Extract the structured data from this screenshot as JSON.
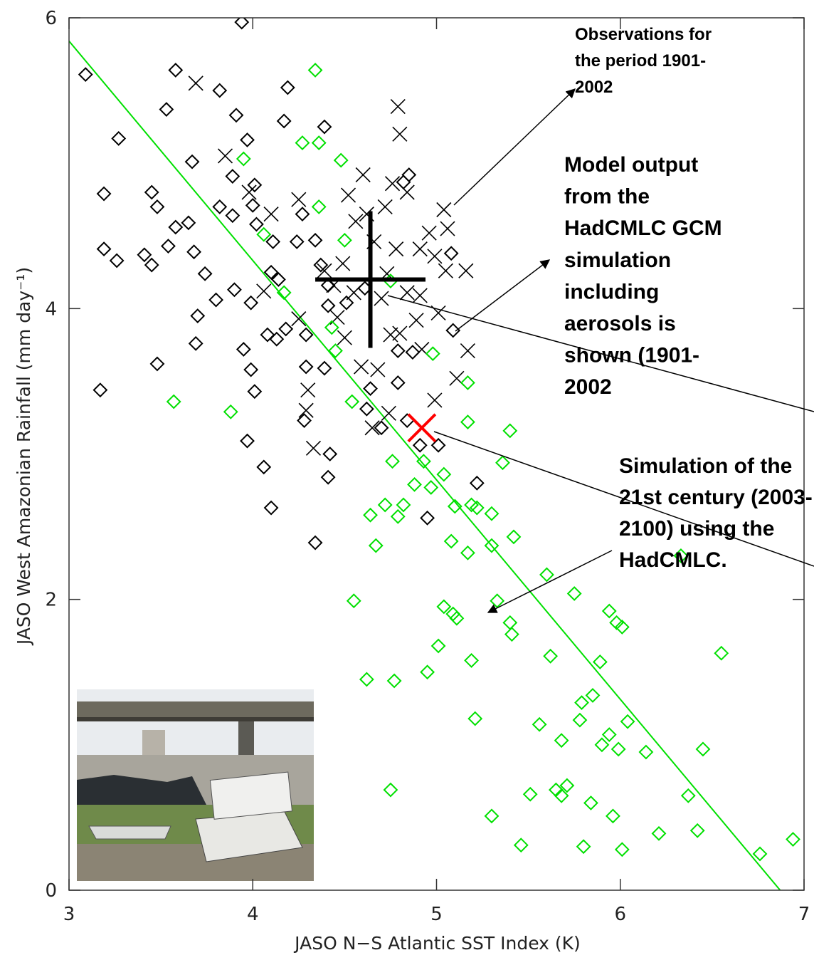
{
  "chart_data": {
    "type": "scatter",
    "xlabel": "JASO N−S Atlantic SST Index (K)",
    "ylabel": "JASO West Amazonian Rainfall (mm day⁻¹)",
    "xlim": [
      3,
      7
    ],
    "ylim": [
      0,
      6
    ],
    "xticks": [
      3,
      4,
      5,
      6,
      7
    ],
    "yticks": [
      0,
      2,
      4,
      6
    ],
    "annotations": [
      [
        "Observations for",
        "the period 1901-",
        "2002"
      ],
      [
        "Model output",
        "from the",
        "HadCMLC GCM",
        "simulation",
        "including",
        "aerosols is",
        "shown (1901-",
        "2002"
      ],
      [
        "Simulation of the",
        "21st century (2003-",
        "2100) using the",
        "HadCMLC."
      ]
    ],
    "series": [
      {
        "marker": "diamond",
        "color": "#000000",
        "x": [
          3.09,
          3.58,
          3.94,
          3.82,
          3.53,
          3.27,
          3.91,
          3.97,
          4.19,
          4.17,
          4.39,
          3.67,
          3.45,
          3.19,
          3.48,
          3.58,
          3.65,
          3.19,
          3.26,
          3.41,
          3.54,
          3.45,
          3.68,
          3.74,
          3.7,
          3.69,
          3.48,
          3.17,
          3.8,
          3.9,
          3.99,
          3.95,
          3.99,
          4.01,
          3.97,
          4.06,
          4.1,
          4.34,
          4.41,
          4.42,
          4.95,
          5.22,
          5.09,
          5.08,
          4.85,
          4.82,
          3.89,
          4.01,
          3.82,
          3.89,
          4.0,
          4.02,
          4.11,
          4.1,
          4.14,
          4.08,
          4.13,
          4.18,
          4.29,
          4.28,
          4.29,
          4.39,
          4.27,
          4.24,
          4.34,
          4.37,
          4.41,
          4.41,
          4.51,
          4.61,
          4.62,
          4.64,
          4.7,
          4.79,
          4.79,
          4.87,
          4.84,
          4.91,
          5.01
        ],
        "values": [
          5.61,
          5.64,
          5.97,
          5.5,
          5.37,
          5.17,
          5.33,
          5.16,
          5.52,
          5.29,
          5.25,
          5.01,
          4.8,
          4.79,
          4.7,
          4.56,
          4.59,
          4.41,
          4.33,
          4.37,
          4.43,
          4.3,
          4.39,
          4.24,
          3.95,
          3.76,
          3.62,
          3.44,
          4.06,
          4.13,
          4.04,
          3.72,
          3.58,
          3.43,
          3.09,
          2.91,
          2.63,
          2.39,
          2.84,
          3.0,
          2.56,
          2.8,
          3.85,
          4.38,
          4.92,
          4.87,
          4.91,
          4.85,
          4.7,
          4.64,
          4.71,
          4.58,
          4.46,
          4.25,
          4.2,
          3.82,
          3.79,
          3.86,
          3.82,
          3.23,
          3.6,
          3.59,
          4.65,
          4.46,
          4.47,
          4.3,
          4.16,
          4.02,
          4.04,
          4.14,
          3.31,
          3.45,
          3.18,
          3.49,
          3.71,
          3.7,
          3.23,
          3.06,
          3.06
        ]
      },
      {
        "marker": "cross",
        "color": "#000000",
        "x": [
          3.69,
          3.85,
          3.98,
          4.25,
          4.1,
          4.06,
          4.25,
          4.3,
          4.29,
          4.33,
          4.79,
          4.8,
          4.76,
          4.84,
          4.6,
          4.52,
          4.62,
          4.72,
          5.04,
          5.06,
          4.96,
          5.05,
          5.16,
          5.17,
          5.11,
          4.99,
          4.65,
          4.74,
          4.68,
          4.59,
          4.5,
          4.46,
          4.75,
          4.89,
          5.01,
          4.91,
          4.84,
          4.7,
          4.44,
          4.55,
          4.66,
          4.78,
          4.91,
          4.99,
          4.56,
          4.39,
          4.73,
          4.92,
          4.8,
          4.49
        ],
        "values": [
          5.55,
          5.05,
          4.8,
          4.75,
          4.65,
          4.12,
          3.93,
          3.44,
          3.3,
          3.04,
          5.39,
          5.2,
          4.86,
          4.8,
          4.92,
          4.78,
          4.65,
          4.7,
          4.68,
          4.55,
          4.52,
          4.26,
          4.26,
          3.71,
          3.52,
          3.37,
          3.18,
          3.28,
          3.58,
          3.6,
          3.8,
          3.94,
          3.82,
          3.92,
          3.97,
          4.09,
          4.11,
          4.07,
          4.16,
          4.11,
          4.46,
          4.41,
          4.41,
          4.36,
          4.6,
          4.26,
          4.24,
          3.72,
          3.83,
          4.31
        ]
      },
      {
        "marker": "diamond",
        "color": "#00e000",
        "x": [
          4.34,
          4.27,
          4.36,
          4.48,
          3.95,
          4.06,
          4.36,
          4.5,
          4.17,
          4.43,
          4.45,
          4.98,
          4.75,
          3.57,
          3.88,
          4.54,
          5.17,
          5.17,
          5.4,
          4.76,
          4.93,
          4.88,
          4.97,
          5.04,
          4.82,
          4.72,
          4.64,
          4.79,
          5.1,
          5.19,
          5.22,
          5.3,
          5.36,
          4.67,
          5.08,
          5.3,
          5.17,
          5.42,
          5.6,
          5.75,
          5.94,
          5.98,
          6.01,
          4.55,
          5.04,
          5.09,
          5.11,
          5.33,
          5.4,
          5.41,
          5.01,
          4.95,
          4.62,
          4.77,
          5.19,
          5.62,
          5.89,
          6.55,
          5.79,
          5.85,
          5.21,
          5.56,
          5.68,
          5.78,
          5.9,
          5.94,
          5.99,
          6.04,
          6.14,
          6.45,
          4.75,
          5.51,
          5.65,
          5.68,
          5.71,
          5.84,
          5.96,
          5.3,
          6.37,
          6.42,
          6.21,
          5.46,
          5.8,
          6.01,
          6.76,
          6.94,
          6.33
        ],
        "values": [
          5.64,
          5.14,
          5.14,
          5.02,
          5.03,
          4.51,
          4.7,
          4.47,
          4.11,
          3.87,
          3.71,
          3.69,
          4.19,
          3.36,
          3.29,
          3.36,
          3.49,
          3.22,
          3.16,
          2.95,
          2.95,
          2.79,
          2.77,
          2.86,
          2.65,
          2.65,
          2.58,
          2.57,
          2.64,
          2.65,
          2.63,
          2.59,
          2.94,
          2.37,
          2.4,
          2.37,
          2.32,
          2.43,
          2.17,
          2.04,
          1.92,
          1.84,
          1.81,
          1.99,
          1.95,
          1.9,
          1.87,
          1.99,
          1.84,
          1.76,
          1.68,
          1.5,
          1.45,
          1.44,
          1.58,
          1.61,
          1.57,
          1.63,
          1.29,
          1.34,
          1.18,
          1.14,
          1.03,
          1.17,
          1.0,
          1.07,
          0.97,
          1.16,
          0.95,
          0.97,
          0.69,
          0.66,
          0.69,
          0.65,
          0.72,
          0.6,
          0.51,
          0.51,
          0.65,
          0.41,
          0.39,
          0.31,
          0.3,
          0.28,
          0.25,
          0.35,
          2.3
        ]
      }
    ],
    "fit_line": {
      "color": "#00e000",
      "x": [
        3,
        6.87
      ],
      "values": [
        5.84,
        0
      ]
    },
    "mean": {
      "color": "#000000",
      "x": 4.64,
      "y": 4.2,
      "xerr": 0.3,
      "yerr": 0.47
    },
    "future_mean": {
      "color": "#ff0000",
      "x": 4.92,
      "y": 3.18
    }
  }
}
